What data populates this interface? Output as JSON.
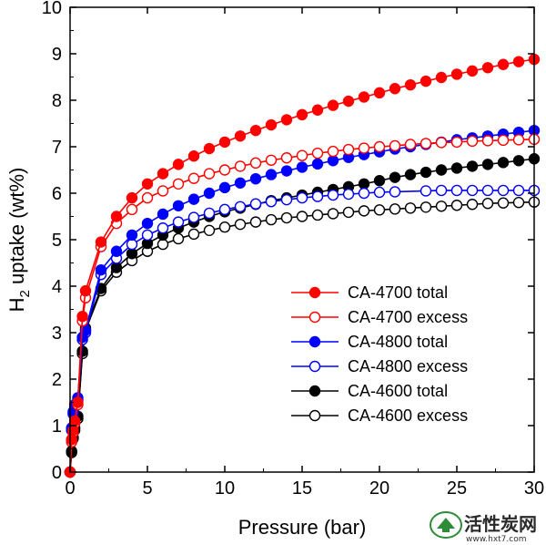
{
  "chart_data": {
    "type": "line",
    "xlabel": "Pressure (bar)",
    "ylabel_main": "H",
    "ylabel_sub": "2",
    "ylabel_rest": " uptake (wt%)",
    "xlim": [
      0,
      30
    ],
    "ylim": [
      0,
      10
    ],
    "xticks": [
      0,
      5,
      10,
      15,
      20,
      25,
      30
    ],
    "yticks": [
      0,
      1,
      2,
      3,
      4,
      5,
      6,
      7,
      8,
      9,
      10
    ],
    "grid": false,
    "legend_position": "lower-right",
    "series": [
      {
        "name": "CA-4700 total",
        "color": "#ff0000",
        "filled": true,
        "x": [
          0,
          0.1,
          0.2,
          0.3,
          0.5,
          0.8,
          1,
          2,
          3,
          4,
          5,
          6,
          7,
          8,
          9,
          10,
          11,
          12,
          13,
          14,
          15,
          16,
          17,
          18,
          19,
          20,
          21,
          22,
          23,
          24,
          25,
          26,
          27,
          28,
          29,
          30
        ],
        "y": [
          0,
          0.7,
          0.9,
          1.1,
          1.5,
          3.35,
          3.9,
          4.95,
          5.5,
          5.9,
          6.2,
          6.42,
          6.62,
          6.8,
          6.96,
          7.1,
          7.23,
          7.35,
          7.47,
          7.58,
          7.69,
          7.79,
          7.89,
          7.98,
          8.07,
          8.16,
          8.25,
          8.33,
          8.41,
          8.49,
          8.56,
          8.63,
          8.7,
          8.77,
          8.83,
          8.88
        ]
      },
      {
        "name": "CA-4700 excess",
        "color": "#ff0000",
        "filled": false,
        "x": [
          0,
          0.1,
          0.2,
          0.3,
          0.5,
          0.8,
          1,
          2,
          3,
          4,
          5,
          6,
          7,
          8,
          9,
          10,
          11,
          12,
          13,
          14,
          15,
          16,
          17,
          18,
          19,
          20,
          21,
          22,
          23,
          24,
          25,
          26,
          27,
          28,
          29,
          30
        ],
        "y": [
          0,
          0.65,
          0.85,
          1.05,
          1.45,
          3.25,
          3.75,
          4.85,
          5.35,
          5.65,
          5.9,
          6.05,
          6.2,
          6.32,
          6.42,
          6.5,
          6.58,
          6.65,
          6.71,
          6.76,
          6.81,
          6.86,
          6.9,
          6.94,
          6.97,
          7.0,
          7.02,
          7.05,
          7.07,
          7.09,
          7.1,
          7.12,
          7.13,
          7.14,
          7.15,
          7.16
        ]
      },
      {
        "name": "CA-4800 total",
        "color": "#0000ff",
        "filled": true,
        "x": [
          0,
          0.1,
          0.2,
          0.3,
          0.5,
          0.8,
          1,
          2,
          3,
          4,
          5,
          6,
          7,
          8,
          9,
          10,
          11,
          12,
          13,
          14,
          15,
          16,
          17,
          18,
          19,
          20,
          21,
          22,
          23,
          24,
          25,
          26,
          27,
          28,
          29,
          30
        ],
        "y": [
          0,
          0.95,
          1.3,
          1.45,
          1.6,
          2.9,
          3.05,
          4.35,
          4.75,
          5.1,
          5.35,
          5.55,
          5.73,
          5.87,
          6.0,
          6.12,
          6.22,
          6.31,
          6.4,
          6.48,
          6.56,
          6.63,
          6.7,
          6.77,
          6.83,
          6.89,
          6.95,
          7.0,
          7.05,
          7.1,
          7.15,
          7.19,
          7.23,
          7.27,
          7.31,
          7.35
        ]
      },
      {
        "name": "CA-4800 excess",
        "color": "#0000ff",
        "filled": false,
        "x": [
          0,
          0.1,
          0.2,
          0.3,
          0.5,
          0.8,
          1,
          2,
          3,
          4,
          5,
          6,
          7,
          8,
          9,
          10,
          11,
          12,
          13,
          14,
          15,
          16,
          17,
          18,
          19,
          20,
          21,
          23,
          24,
          25,
          26,
          27,
          28,
          29,
          30
        ],
        "y": [
          0,
          0.9,
          1.25,
          1.4,
          1.55,
          2.85,
          3.0,
          4.25,
          4.6,
          4.9,
          5.1,
          5.25,
          5.38,
          5.48,
          5.57,
          5.65,
          5.71,
          5.77,
          5.82,
          5.86,
          5.9,
          5.93,
          5.96,
          5.98,
          6.0,
          6.02,
          6.03,
          6.05,
          6.06,
          6.06,
          6.06,
          6.06,
          6.06,
          6.06,
          6.06
        ]
      },
      {
        "name": "CA-4600 total",
        "color": "#000000",
        "filled": true,
        "x": [
          0,
          0.1,
          0.2,
          0.3,
          0.5,
          0.8,
          1,
          2,
          3,
          4,
          5,
          6,
          7,
          8,
          9,
          10,
          11,
          12,
          13,
          14,
          15,
          16,
          17,
          18,
          19,
          20,
          21,
          22,
          23,
          24,
          25,
          26,
          27,
          28,
          29,
          30
        ],
        "y": [
          0,
          0.45,
          0.75,
          0.95,
          1.2,
          2.6,
          3.1,
          3.95,
          4.4,
          4.7,
          4.92,
          5.1,
          5.25,
          5.38,
          5.5,
          5.6,
          5.68,
          5.76,
          5.84,
          5.9,
          5.96,
          6.02,
          6.08,
          6.14,
          6.2,
          6.27,
          6.34,
          6.4,
          6.45,
          6.5,
          6.54,
          6.58,
          6.62,
          6.66,
          6.7,
          6.74
        ]
      },
      {
        "name": "CA-4600 excess",
        "color": "#000000",
        "filled": false,
        "x": [
          0,
          0.1,
          0.2,
          0.3,
          0.5,
          0.8,
          1,
          2,
          3,
          4,
          5,
          6,
          7,
          8,
          9,
          10,
          11,
          12,
          13,
          14,
          15,
          16,
          17,
          18,
          19,
          20,
          21,
          22,
          23,
          24,
          25,
          26,
          27,
          28,
          29,
          30
        ],
        "y": [
          0,
          0.42,
          0.72,
          0.9,
          1.15,
          2.55,
          3.05,
          3.9,
          4.3,
          4.55,
          4.75,
          4.9,
          5.02,
          5.12,
          5.2,
          5.27,
          5.33,
          5.38,
          5.43,
          5.47,
          5.5,
          5.53,
          5.56,
          5.59,
          5.62,
          5.64,
          5.66,
          5.68,
          5.7,
          5.72,
          5.74,
          5.76,
          5.78,
          5.79,
          5.8,
          5.81
        ]
      }
    ]
  },
  "watermark": {
    "text": "活性炭网",
    "url": "www.hxt7.com",
    "color": "#2e8b3a"
  }
}
